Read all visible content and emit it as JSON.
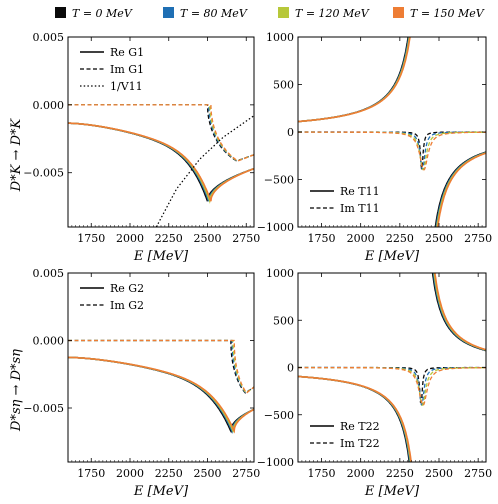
{
  "colors": {
    "T0": "#0a0a0a",
    "T80": "#1f6fb4",
    "T120": "#b7c83a",
    "T150": "#ee7d34"
  },
  "legend_top": [
    {
      "key": "T0",
      "label": "T = 0 MeV"
    },
    {
      "key": "T80",
      "label": "T = 80 MeV"
    },
    {
      "key": "T120",
      "label": "T = 120 MeV"
    },
    {
      "key": "T150",
      "label": "T = 150 MeV"
    }
  ],
  "row_labels": [
    "D*K → D*K",
    "D*sη → D*sη"
  ],
  "chart_data": [
    {
      "type": "line",
      "panel": "top-left",
      "xlabel": "E [MeV]",
      "xlim": [
        1600,
        2800
      ],
      "ylim": [
        -0.009,
        0.005
      ],
      "xticks": [
        1750,
        2000,
        2250,
        2500,
        2750
      ],
      "yticks": [
        -0.005,
        0.0,
        0.005
      ],
      "ytick_labels": [
        "−0.005",
        "0.000",
        "0.005"
      ],
      "legend": [
        "Re G1",
        "Im G1",
        "1/V11"
      ],
      "legend_position": "top-left",
      "threshold": 2500,
      "re_start": -0.00135,
      "re_dip": -0.0071,
      "re_end": -0.0047,
      "im_depth": -0.0049,
      "v11": {
        "x": [
          2170,
          2300,
          2450,
          2600,
          2800
        ],
        "y": [
          -0.009,
          -0.0062,
          -0.004,
          -0.0024,
          -0.0008
        ]
      }
    },
    {
      "type": "line",
      "panel": "top-right",
      "xlabel": "E [MeV]",
      "xlim": [
        1600,
        2800
      ],
      "ylim": [
        -1000,
        1000
      ],
      "xticks": [
        1750,
        2000,
        2250,
        2500,
        2750
      ],
      "yticks": [
        -1000,
        -500,
        0,
        500,
        1000
      ],
      "ytick_labels": [
        "−1000",
        "−500",
        "0",
        "500",
        "1000"
      ],
      "legend": [
        "Re T11",
        "Im T11"
      ],
      "legend_position": "bottom-left",
      "pole": 2390,
      "re_at_start": 110,
      "right_tail": 30
    },
    {
      "type": "line",
      "panel": "bottom-left",
      "xlabel": "E [MeV]",
      "xlim": [
        1600,
        2800
      ],
      "ylim": [
        -0.009,
        0.005
      ],
      "xticks": [
        1750,
        2000,
        2250,
        2500,
        2750
      ],
      "yticks": [
        -0.005,
        0.0,
        0.005
      ],
      "ytick_labels": [
        "−0.005",
        "0.000",
        "0.005"
      ],
      "legend": [
        "Re G2",
        "Im G2"
      ],
      "legend_position": "top-left",
      "threshold": 2650,
      "re_start": -0.00125,
      "re_dip": -0.0067,
      "re_end": -0.0051,
      "im_depth": -0.0046
    },
    {
      "type": "line",
      "panel": "bottom-right",
      "xlabel": "E [MeV]",
      "xlim": [
        1600,
        2800
      ],
      "ylim": [
        -1000,
        1000
      ],
      "xticks": [
        1750,
        2000,
        2250,
        2500,
        2750
      ],
      "yticks": [
        -1000,
        -500,
        0,
        500,
        1000
      ],
      "ytick_labels": [
        "−1000",
        "−500",
        "0",
        "500",
        "1000"
      ],
      "legend": [
        "Re T22",
        "Im T22"
      ],
      "legend_position": "bottom-left",
      "pole": 2385,
      "re_at_start": -95,
      "right_tail": -40
    }
  ]
}
